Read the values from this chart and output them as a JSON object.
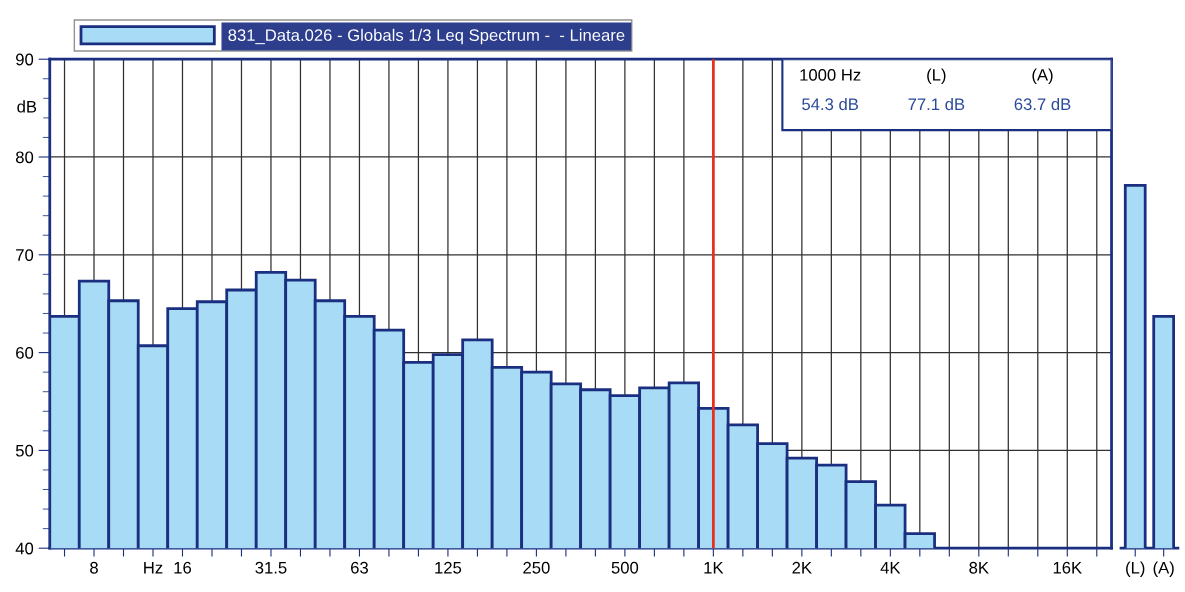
{
  "chart_data": [
    {
      "type": "bar",
      "xlabel": "Hz",
      "ylabel": "dB",
      "categories": [
        null,
        "8",
        null,
        null,
        "16",
        null,
        null,
        "31.5",
        null,
        null,
        "63",
        null,
        null,
        "125",
        null,
        null,
        "250",
        null,
        null,
        "500",
        null,
        null,
        "1K",
        null,
        null,
        "2K",
        null,
        null,
        "4K",
        null,
        null,
        "8K",
        null,
        null,
        "16K",
        null
      ],
      "series": [
        {
          "name": "831_Data.026 - Globals 1/3 Leq Spectrum -  - Lineare",
          "color": "#a8dcf6",
          "values": [
            63.7,
            67.3,
            65.3,
            60.7,
            64.5,
            65.2,
            66.4,
            68.2,
            67.4,
            65.3,
            63.7,
            62.3,
            59.0,
            59.8,
            61.3,
            58.5,
            58.0,
            56.8,
            56.2,
            55.6,
            56.4,
            56.9,
            54.3,
            52.6,
            50.7,
            49.2,
            48.5,
            46.8,
            44.4,
            41.5,
            null,
            null,
            null,
            null,
            null,
            null
          ]
        }
      ],
      "ylim": [
        40,
        90
      ],
      "yticks": [
        40,
        50,
        60,
        70,
        80,
        90
      ],
      "grid": true,
      "legend": "top",
      "ref_lines": [
        {
          "axis": "x",
          "value": "1K",
          "color": "#e8301c"
        }
      ],
      "annotations": [
        "1000 Hz",
        "(L)",
        "(A)",
        "54.3 dB",
        "77.1 dB",
        "63.7 dB"
      ]
    },
    {
      "type": "bar",
      "categories": [
        "(L)",
        "(A)"
      ],
      "series": [
        {
          "color": "#a8dcf6",
          "values": [
            77.1,
            63.7
          ]
        }
      ],
      "ylim": [
        40,
        90
      ],
      "tick_labels": "x"
    }
  ]
}
